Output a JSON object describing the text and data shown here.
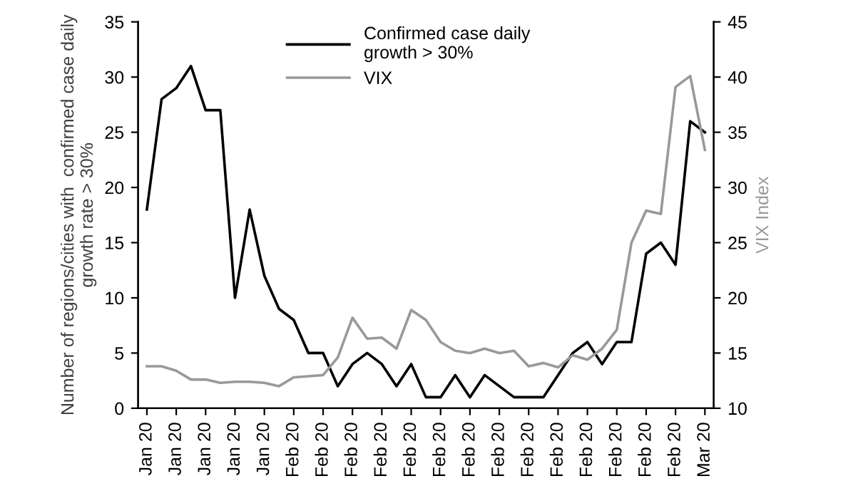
{
  "chart_data": {
    "type": "line",
    "ylabel": "Number of regions/cities with  confirmed case daily\ngrowth rate > 30%",
    "y2label": "VIX Index",
    "categories": [
      "Jan 20",
      null,
      "Jan 20",
      null,
      "Jan 20",
      null,
      "Jan 20",
      null,
      "Jan 20",
      null,
      "Feb 20",
      null,
      "Feb 20",
      null,
      "Feb 20",
      null,
      "Feb 20",
      null,
      "Feb 20",
      null,
      "Feb 20",
      null,
      "Feb 20",
      null,
      "Feb 20",
      null,
      "Feb 20",
      null,
      "Feb 20",
      null,
      "Feb 20",
      null,
      "Feb 20",
      null,
      "Feb 20",
      null,
      "Feb 20",
      null,
      "Mar 20"
    ],
    "series": [
      {
        "name": "Confirmed case daily\ngrowth > 30%",
        "color": "#000000",
        "values": [
          18,
          28,
          29,
          31,
          27,
          27,
          10,
          18,
          12,
          9,
          8,
          5,
          5,
          2,
          4,
          5,
          4,
          2,
          4,
          1,
          1,
          3,
          1,
          3,
          2,
          1,
          1,
          1,
          3,
          5,
          6,
          4,
          6,
          6,
          14,
          15,
          13,
          26,
          25
        ]
      },
      {
        "name": "VIX",
        "color": "#999999",
        "axis": "y2",
        "values": [
          13.8,
          13.8,
          13.4,
          12.6,
          12.6,
          12.3,
          12.4,
          12.4,
          12.3,
          12.0,
          12.8,
          12.9,
          13.0,
          14.6,
          18.2,
          16.3,
          16.4,
          15.4,
          18.9,
          18.0,
          16.0,
          15.2,
          15.0,
          15.4,
          15.0,
          15.2,
          13.8,
          14.1,
          13.7,
          14.8,
          14.4,
          15.4,
          17.1,
          25.0,
          27.9,
          27.6,
          39.1,
          40.1,
          33.4
        ]
      }
    ],
    "ylim": [
      0,
      35
    ],
    "yticks": [
      0,
      5,
      10,
      15,
      20,
      25,
      30,
      35
    ],
    "y2lim": [
      10,
      45
    ],
    "y2ticks": [
      10,
      15,
      20,
      25,
      30,
      35,
      40,
      45
    ],
    "grid": false,
    "legend": "top",
    "marker": "none",
    "line_style": "solid"
  }
}
